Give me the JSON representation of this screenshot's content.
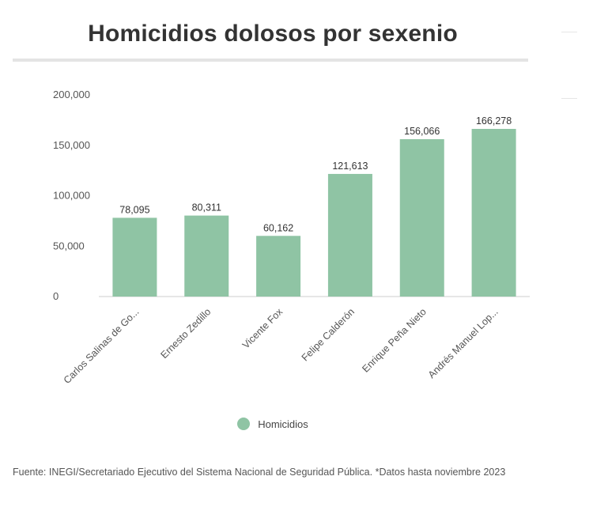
{
  "chart_data": {
    "type": "bar",
    "title": "Homicidios dolosos por sexenio",
    "categories": [
      "Carlos Salinas de Go...",
      "Ernesto Zedillo",
      "Vicente Fox",
      "Felipe Calderón",
      "Enrique Peña Nieto",
      "Andrés Manuel Lop..."
    ],
    "series": [
      {
        "name": "Homicidios",
        "values": [
          78095,
          80311,
          60162,
          121613,
          156066,
          166278
        ],
        "value_labels": [
          "78,095",
          "80,311",
          "60,162",
          "121,613",
          "156,066",
          "166,278"
        ],
        "color": "#8fc4a4"
      }
    ],
    "yticks": [
      0,
      50000,
      100000,
      150000,
      200000
    ],
    "ytick_labels": [
      "0",
      "50,000",
      "100,000",
      "150,000",
      "200,000"
    ],
    "ylim": [
      0,
      200000
    ],
    "grid": false,
    "legend_position": "bottom"
  },
  "source_text": "Fuente: INEGI/Secretariado Ejecutivo del Sistema Nacional de Seguridad Pública. *Datos hasta noviembre 2023"
}
